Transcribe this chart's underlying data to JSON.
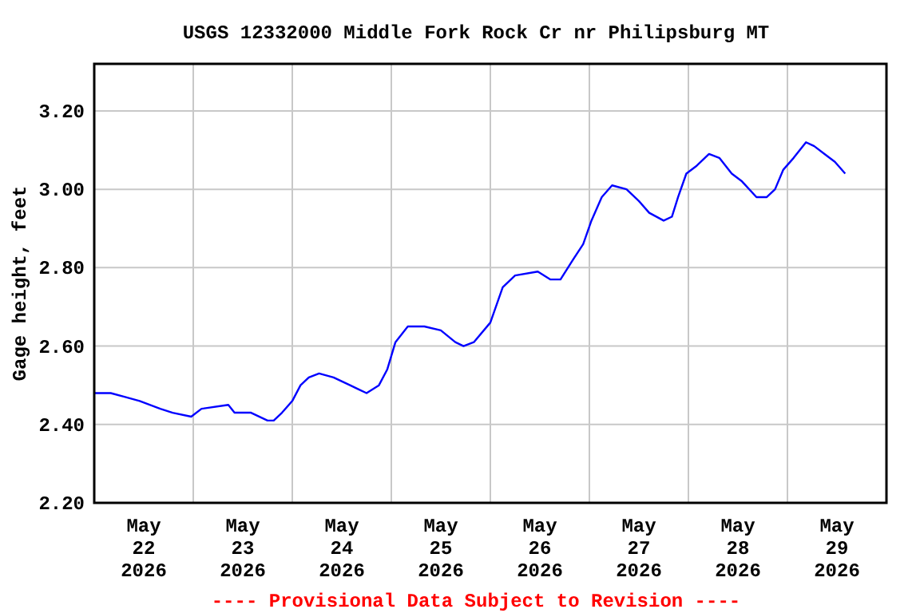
{
  "chart_data": {
    "type": "line",
    "title": "USGS 12332000 Middle Fork Rock Cr nr Philipsburg MT",
    "ylabel": "Gage height, feet",
    "annotations": [
      "---- Provisional Data Subject to Revision ----"
    ],
    "xlim": [
      "2026-05-22T00:00",
      "2026-05-30T00:00"
    ],
    "xticks": [
      {
        "value": "2026-05-22T12:00",
        "label": "May\n22\n2026"
      },
      {
        "value": "2026-05-23T00:00",
        "label": null
      },
      {
        "value": "2026-05-23T12:00",
        "label": "May\n23\n2026"
      },
      {
        "value": "2026-05-24T00:00",
        "label": null
      },
      {
        "value": "2026-05-24T12:00",
        "label": "May\n24\n2026"
      },
      {
        "value": "2026-05-25T00:00",
        "label": null
      },
      {
        "value": "2026-05-25T12:00",
        "label": "May\n25\n2026"
      },
      {
        "value": "2026-05-26T00:00",
        "label": null
      },
      {
        "value": "2026-05-26T12:00",
        "label": "May\n26\n2026"
      },
      {
        "value": "2026-05-27T00:00",
        "label": null
      },
      {
        "value": "2026-05-27T12:00",
        "label": "May\n27\n2026"
      },
      {
        "value": "2026-05-28T00:00",
        "label": null
      },
      {
        "value": "2026-05-28T12:00",
        "label": "May\n28\n2026"
      },
      {
        "value": "2026-05-29T00:00",
        "label": null
      },
      {
        "value": "2026-05-29T12:00",
        "label": "May\n29\n2026"
      }
    ],
    "ylim": [
      2.2,
      3.32
    ],
    "yticks": [
      {
        "value": 2.2,
        "label": "2.20"
      },
      {
        "value": 2.4,
        "label": "2.40"
      },
      {
        "value": 2.6,
        "label": "2.60"
      },
      {
        "value": 2.8,
        "label": "2.80"
      },
      {
        "value": 3.0,
        "label": "3.00"
      },
      {
        "value": 3.2,
        "label": "3.20"
      }
    ],
    "grid": true,
    "marker": "none",
    "line_style": "solid",
    "series": [
      {
        "color": "#0000ff",
        "x": [
          "2026-05-22T00:00",
          "2026-05-22T04:00",
          "2026-05-22T07:30",
          "2026-05-22T11:00",
          "2026-05-22T16:00",
          "2026-05-22T19:00",
          "2026-05-22T23:30",
          "2026-05-23T02:00",
          "2026-05-23T08:30",
          "2026-05-23T10:00",
          "2026-05-23T14:00",
          "2026-05-23T18:00",
          "2026-05-23T19:30",
          "2026-05-23T21:30",
          "2026-05-24T00:00",
          "2026-05-24T02:00",
          "2026-05-24T04:00",
          "2026-05-24T06:30",
          "2026-05-24T10:00",
          "2026-05-24T14:00",
          "2026-05-24T16:00",
          "2026-05-24T18:00",
          "2026-05-24T21:00",
          "2026-05-24T23:00",
          "2026-05-25T01:00",
          "2026-05-25T04:00",
          "2026-05-25T08:00",
          "2026-05-25T12:00",
          "2026-05-25T15:30",
          "2026-05-25T17:30",
          "2026-05-25T20:00",
          "2026-05-26T00:00",
          "2026-05-26T03:00",
          "2026-05-26T06:00",
          "2026-05-26T11:30",
          "2026-05-26T14:30",
          "2026-05-26T17:00",
          "2026-05-26T20:00",
          "2026-05-26T22:30",
          "2026-05-27T00:30",
          "2026-05-27T03:00",
          "2026-05-27T05:30",
          "2026-05-27T09:00",
          "2026-05-27T12:00",
          "2026-05-27T14:30",
          "2026-05-27T18:00",
          "2026-05-27T20:00",
          "2026-05-27T21:30",
          "2026-05-27T23:30",
          "2026-05-28T02:00",
          "2026-05-28T05:00",
          "2026-05-28T07:30",
          "2026-05-28T10:30",
          "2026-05-28T13:00",
          "2026-05-28T16:30",
          "2026-05-28T19:00",
          "2026-05-28T21:00",
          "2026-05-28T23:00",
          "2026-05-29T01:30",
          "2026-05-29T04:30",
          "2026-05-29T06:30",
          "2026-05-29T09:00",
          "2026-05-29T11:30",
          "2026-05-29T14:00"
        ],
        "values": [
          2.48,
          2.48,
          2.47,
          2.46,
          2.44,
          2.43,
          2.42,
          2.44,
          2.45,
          2.43,
          2.43,
          2.41,
          2.41,
          2.43,
          2.46,
          2.5,
          2.52,
          2.53,
          2.52,
          2.5,
          2.49,
          2.48,
          2.5,
          2.54,
          2.61,
          2.65,
          2.65,
          2.64,
          2.61,
          2.6,
          2.61,
          2.66,
          2.75,
          2.78,
          2.79,
          2.77,
          2.77,
          2.82,
          2.86,
          2.92,
          2.98,
          3.01,
          3.0,
          2.97,
          2.94,
          2.92,
          2.93,
          2.98,
          3.04,
          3.06,
          3.09,
          3.08,
          3.04,
          3.02,
          2.98,
          2.98,
          3.0,
          3.05,
          3.08,
          3.12,
          3.11,
          3.09,
          3.07,
          3.04
        ]
      }
    ]
  }
}
